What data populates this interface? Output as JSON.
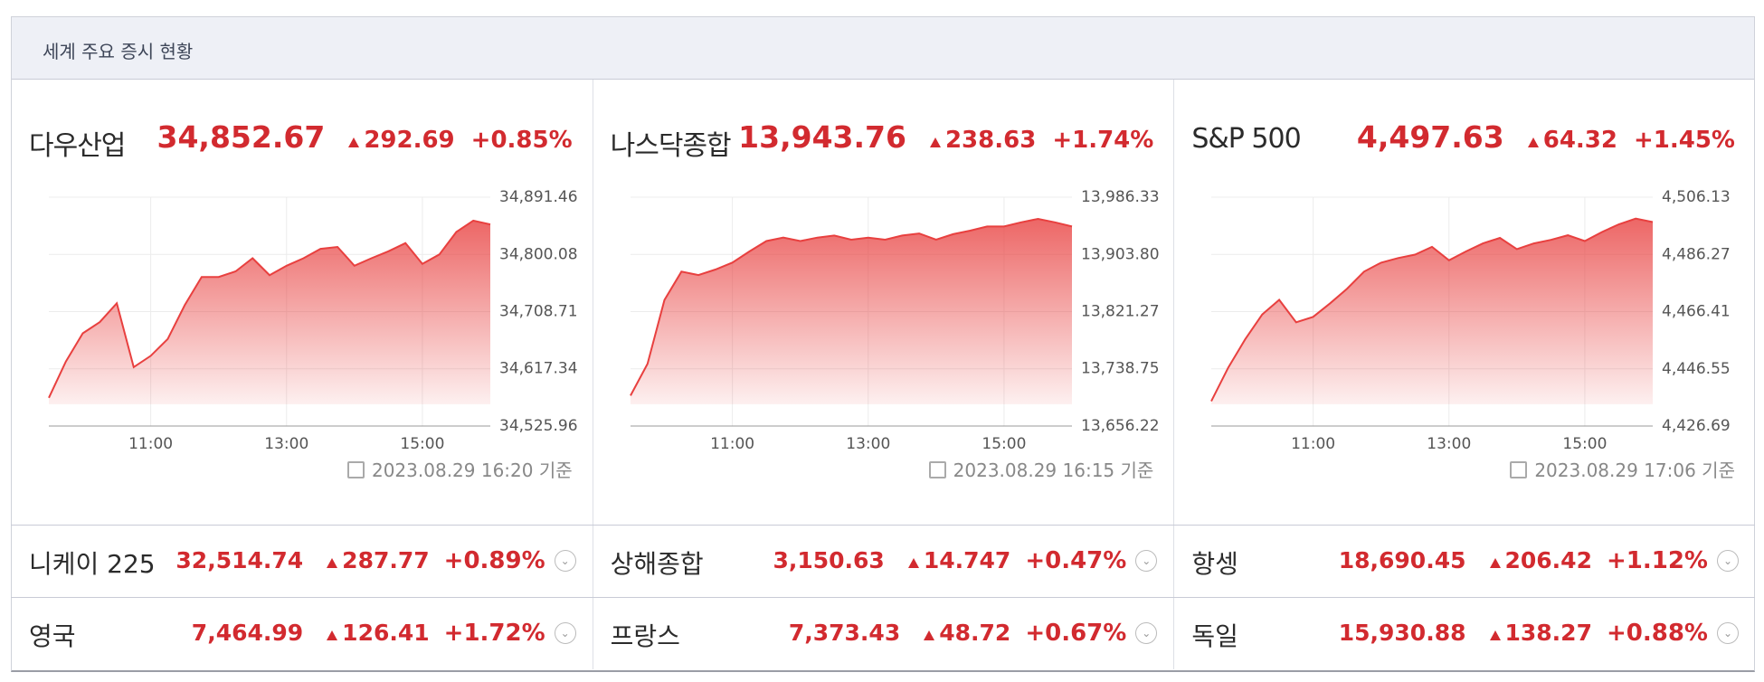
{
  "header": {
    "title": "세계 주요 증시 현황"
  },
  "chart_data": [
    {
      "type": "line",
      "title": "다우산업",
      "price": "34,852.67",
      "change": "292.69",
      "pct": "+0.85%",
      "timestamp": "2023.08.29 16:20 기준",
      "color": "#e8403f",
      "x": [
        "09:30",
        "09:45",
        "10:00",
        "10:15",
        "10:30",
        "10:45",
        "11:00",
        "11:15",
        "11:30",
        "11:45",
        "12:00",
        "12:15",
        "12:30",
        "12:45",
        "13:00",
        "13:15",
        "13:30",
        "13:45",
        "14:00",
        "14:15",
        "14:30",
        "14:45",
        "15:00",
        "15:15",
        "15:30",
        "15:45",
        "16:00"
      ],
      "values": [
        34571,
        34629,
        34674,
        34692,
        34722,
        34620,
        34638,
        34665,
        34719,
        34764,
        34764,
        34773,
        34794,
        34767,
        34782,
        34794,
        34809,
        34812,
        34782,
        34794,
        34805,
        34818,
        34785,
        34800,
        34836,
        34854,
        34848
      ],
      "xlim": [
        "09:30",
        "16:00"
      ],
      "xticks": [
        "11:00",
        "13:00",
        "15:00"
      ],
      "ylim": [
        34525.96,
        34891.46
      ],
      "yticks": [
        {
          "value": 34525.96,
          "label": "34,525.96"
        },
        {
          "value": 34617.34,
          "label": "34,617.34"
        },
        {
          "value": 34708.71,
          "label": "34,708.71"
        },
        {
          "value": 34800.08,
          "label": "34,800.08"
        },
        {
          "value": 34891.46,
          "label": "34,891.46"
        }
      ],
      "grid": true
    },
    {
      "type": "line",
      "title": "나스닥종합",
      "price": "13,943.76",
      "change": "238.63",
      "pct": "+1.74%",
      "timestamp": "2023.08.29 16:15 기준",
      "color": "#e8403f",
      "x": [
        "09:30",
        "09:45",
        "10:00",
        "10:15",
        "10:30",
        "10:45",
        "11:00",
        "11:15",
        "11:30",
        "11:45",
        "12:00",
        "12:15",
        "12:30",
        "12:45",
        "13:00",
        "13:15",
        "13:30",
        "13:45",
        "14:00",
        "14:15",
        "14:30",
        "14:45",
        "15:00",
        "15:15",
        "15:30",
        "15:45",
        "16:00"
      ],
      "values": [
        13700,
        13746,
        13838,
        13879,
        13874,
        13882,
        13892,
        13908,
        13923,
        13928,
        13923,
        13928,
        13931,
        13925,
        13928,
        13925,
        13931,
        13934,
        13925,
        13933,
        13938,
        13944,
        13944,
        13950,
        13955,
        13950,
        13944
      ],
      "xlim": [
        "09:30",
        "16:00"
      ],
      "xticks": [
        "11:00",
        "13:00",
        "15:00"
      ],
      "ylim": [
        13656.22,
        13986.33
      ],
      "yticks": [
        {
          "value": 13656.22,
          "label": "13,656.22"
        },
        {
          "value": 13738.75,
          "label": "13,738.75"
        },
        {
          "value": 13821.27,
          "label": "13,821.27"
        },
        {
          "value": 13903.8,
          "label": "13,903.80"
        },
        {
          "value": 13986.33,
          "label": "13,986.33"
        }
      ],
      "grid": true
    },
    {
      "type": "line",
      "title": "S&P 500",
      "price": "4,497.63",
      "change": "64.32",
      "pct": "+1.45%",
      "timestamp": "2023.08.29 17:06 기준",
      "color": "#e8403f",
      "x": [
        "09:30",
        "09:45",
        "10:00",
        "10:15",
        "10:30",
        "10:45",
        "11:00",
        "11:15",
        "11:30",
        "11:45",
        "12:00",
        "12:15",
        "12:30",
        "12:45",
        "13:00",
        "13:15",
        "13:30",
        "13:45",
        "14:00",
        "14:15",
        "14:30",
        "14:45",
        "15:00",
        "15:15",
        "15:30",
        "15:45",
        "16:00"
      ],
      "values": [
        4435.3,
        4447.0,
        4456.8,
        4465.4,
        4470.5,
        4462.7,
        4464.6,
        4469.3,
        4474.4,
        4480.3,
        4483.4,
        4485.0,
        4486.2,
        4488.9,
        4484.2,
        4487.3,
        4490.1,
        4492.0,
        4488.1,
        4490.1,
        4491.3,
        4492.9,
        4490.9,
        4494.0,
        4496.7,
        4498.7,
        4497.5
      ],
      "xlim": [
        "09:30",
        "16:00"
      ],
      "xticks": [
        "11:00",
        "13:00",
        "15:00"
      ],
      "ylim": [
        4426.69,
        4506.13
      ],
      "yticks": [
        {
          "value": 4426.69,
          "label": "4,426.69"
        },
        {
          "value": 4446.55,
          "label": "4,446.55"
        },
        {
          "value": 4466.41,
          "label": "4,466.41"
        },
        {
          "value": 4486.27,
          "label": "4,486.27"
        },
        {
          "value": 4506.13,
          "label": "4,506.13"
        }
      ],
      "grid": true
    }
  ],
  "rows": [
    [
      {
        "name": "니케이 225",
        "price": "32,514.74",
        "change": "287.77",
        "pct": "+0.89%"
      },
      {
        "name": "상해종합",
        "price": "3,150.63",
        "change": "14.747",
        "pct": "+0.47%"
      },
      {
        "name": "항셍",
        "price": "18,690.45",
        "change": "206.42",
        "pct": "+1.12%"
      }
    ],
    [
      {
        "name": "영국",
        "price": "7,464.99",
        "change": "126.41",
        "pct": "+1.72%"
      },
      {
        "name": "프랑스",
        "price": "7,373.43",
        "change": "48.72",
        "pct": "+0.67%"
      },
      {
        "name": "독일",
        "price": "15,930.88",
        "change": "138.27",
        "pct": "+0.88%"
      }
    ]
  ]
}
